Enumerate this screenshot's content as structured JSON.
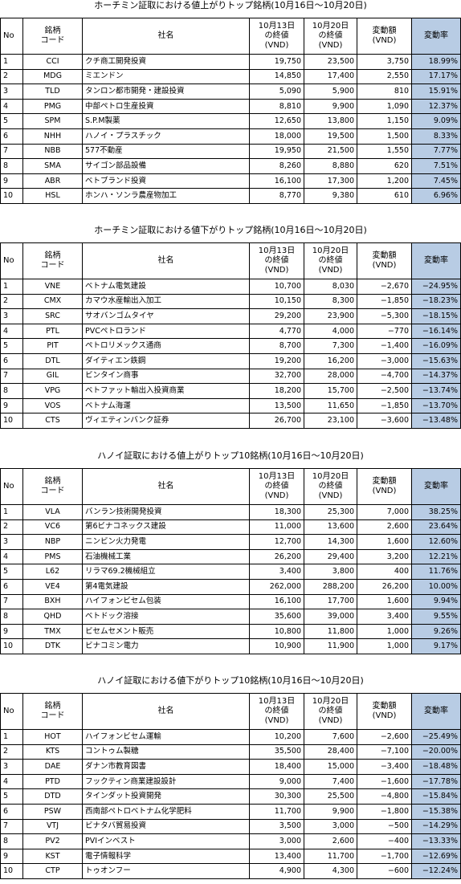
{
  "sections": [
    {
      "title": "ホーチミン証取における値上がりトップ銘柄(10月16日～10月20日)",
      "header": [
        [
          "No"
        ],
        [
          "銘柄",
          "コード"
        ],
        [
          "社名"
        ],
        [
          "10月13日",
          "の終値",
          "(VND)"
        ],
        [
          "10月20日",
          "の終値",
          "(VND)"
        ],
        [
          "変動額",
          "(VND)"
        ],
        [
          "変動率"
        ]
      ],
      "rows": [
        [
          "1",
          "CCI",
          "クチ商工開発投資",
          "19,750",
          "23,500",
          "3,750",
          "18.99%"
        ],
        [
          "2",
          "MDG",
          "ミエンドン",
          "14,850",
          "17,400",
          "2,550",
          "17.17%"
        ],
        [
          "3",
          "TLD",
          "タンロン都市開発・建設投資",
          "5,090",
          "5,900",
          "810",
          "15.91%"
        ],
        [
          "4",
          "PMG",
          "中部ペトロ生産投資",
          "8,810",
          "9,900",
          "1,090",
          "12.37%"
        ],
        [
          "5",
          "SPM",
          "S.P.M製薬",
          "12,650",
          "13,800",
          "1,150",
          "9.09%"
        ],
        [
          "6",
          "NHH",
          "ハノイ・プラスチック",
          "18,000",
          "19,500",
          "1,500",
          "8.33%"
        ],
        [
          "7",
          "NBB",
          "577不動産",
          "19,950",
          "21,500",
          "1,550",
          "7.77%"
        ],
        [
          "8",
          "SMA",
          "サイゴン部品設備",
          "8,260",
          "8,880",
          "620",
          "7.51%"
        ],
        [
          "9",
          "ABR",
          "ベトブランド投資",
          "16,100",
          "17,300",
          "1,200",
          "7.45%"
        ],
        [
          "10",
          "HSL",
          "ホンハ・ソンラ農産物加工",
          "8,770",
          "9,380",
          "610",
          "6.96%"
        ]
      ]
    },
    {
      "title": "ホーチミン証取における値下がりトップ銘柄(10月16日～10月20日)",
      "header": [
        [
          "No"
        ],
        [
          "銘柄",
          "コード"
        ],
        [
          "社名"
        ],
        [
          "10月13日",
          "の終値",
          "(VND)"
        ],
        [
          "10月20日",
          "の終値",
          "(VND)"
        ],
        [
          "変動額",
          "(VND)"
        ],
        [
          "変動率"
        ]
      ],
      "rows": [
        [
          "1",
          "VNE",
          "ベトナム電気建設",
          "10,700",
          "8,030",
          "−2,670",
          "−24.95%"
        ],
        [
          "2",
          "CMX",
          "カマウ水産輸出入加工",
          "10,150",
          "8,300",
          "−1,850",
          "−18.23%"
        ],
        [
          "3",
          "SRC",
          "サオバンゴムタイヤ",
          "29,200",
          "23,900",
          "−5,300",
          "−18.15%"
        ],
        [
          "4",
          "PTL",
          "PVCペトロランド",
          "4,770",
          "4,000",
          "−770",
          "−16.14%"
        ],
        [
          "5",
          "PIT",
          "ペトロリメックス通商",
          "8,700",
          "7,300",
          "−1,400",
          "−16.09%"
        ],
        [
          "6",
          "DTL",
          "ダイティエン鉄鋼",
          "19,200",
          "16,200",
          "−3,000",
          "−15.63%"
        ],
        [
          "7",
          "GIL",
          "ビンタイン商事",
          "32,700",
          "28,000",
          "−4,700",
          "−14.37%"
        ],
        [
          "8",
          "VPG",
          "ベトファット輸出入投資商業",
          "18,200",
          "15,700",
          "−2,500",
          "−13.74%"
        ],
        [
          "9",
          "VOS",
          "ベトナム海運",
          "13,500",
          "11,650",
          "−1,850",
          "−13.70%"
        ],
        [
          "10",
          "CTS",
          "ヴィエティンバンク証券",
          "26,700",
          "23,100",
          "−3,600",
          "−13.48%"
        ]
      ]
    },
    {
      "title": "ハノイ証取における値上がりトップ10銘柄(10月16日～10月20日)",
      "header": [
        [
          "No"
        ],
        [
          "銘柄",
          "コード"
        ],
        [
          "社名"
        ],
        [
          "10月13日",
          "の終値",
          "(VND)"
        ],
        [
          "10月20日",
          "の終値",
          "(VND)"
        ],
        [
          "変動額",
          "(VND)"
        ],
        [
          "変動率"
        ]
      ],
      "rows": [
        [
          "1",
          "VLA",
          "バンラン技術開発投資",
          "18,300",
          "25,300",
          "7,000",
          "38.25%"
        ],
        [
          "2",
          "VC6",
          "第6ビナコネックス建設",
          "11,000",
          "13,600",
          "2,600",
          "23.64%"
        ],
        [
          "3",
          "NBP",
          "ニンビン火力発電",
          "12,700",
          "14,300",
          "1,600",
          "12.60%"
        ],
        [
          "4",
          "PMS",
          "石油機械工業",
          "26,200",
          "29,400",
          "3,200",
          "12.21%"
        ],
        [
          "5",
          "L62",
          "リラマ69.2機械組立",
          "3,400",
          "3,800",
          "400",
          "11.76%"
        ],
        [
          "6",
          "VE4",
          "第4電気建設",
          "262,000",
          "288,200",
          "26,200",
          "10.00%"
        ],
        [
          "7",
          "BXH",
          "ハイフォンビセム包装",
          "16,100",
          "17,700",
          "1,600",
          "9.94%"
        ],
        [
          "8",
          "QHD",
          "ベトドック溶接",
          "35,600",
          "39,000",
          "3,400",
          "9.55%"
        ],
        [
          "9",
          "TMX",
          "ビセムセメント販売",
          "10,800",
          "11,800",
          "1,000",
          "9.26%"
        ],
        [
          "10",
          "DTK",
          "ビナコミン電力",
          "10,900",
          "11,900",
          "1,000",
          "9.17%"
        ]
      ]
    },
    {
      "title": "ハノイ証取における値下がりトップ10銘柄(10月16日～10月20日)",
      "header": [
        [
          "No"
        ],
        [
          "銘柄",
          "コード"
        ],
        [
          "社名"
        ],
        [
          "10月13日",
          "の終値",
          "(VND)"
        ],
        [
          "10月20日",
          "の終値",
          "(VND)"
        ],
        [
          "変動額",
          "(VND)"
        ],
        [
          "変動率"
        ]
      ],
      "rows": [
        [
          "1",
          "HOT",
          "ハイフォンビセム運輸",
          "10,200",
          "7,600",
          "−2,600",
          "−25.49%"
        ],
        [
          "2",
          "KTS",
          "コントゥム製糖",
          "35,500",
          "28,400",
          "−7,100",
          "−20.00%"
        ],
        [
          "3",
          "DAE",
          "ダナン市教育図書",
          "18,400",
          "15,000",
          "−3,400",
          "−18.48%"
        ],
        [
          "4",
          "PTD",
          "フックティン商業建設設計",
          "9,000",
          "7,400",
          "−1,600",
          "−17.78%"
        ],
        [
          "5",
          "DTD",
          "タインダット投資開発",
          "30,300",
          "25,500",
          "−4,800",
          "−15.84%"
        ],
        [
          "6",
          "PSW",
          "西南部ペトロベトナム化学肥料",
          "11,700",
          "9,900",
          "−1,800",
          "−15.38%"
        ],
        [
          "7",
          "VTJ",
          "ビナタバ貿易投資",
          "3,500",
          "3,000",
          "−500",
          "−14.29%"
        ],
        [
          "8",
          "PV2",
          "PVIインベスト",
          "3,000",
          "2,600",
          "−400",
          "−13.33%"
        ],
        [
          "9",
          "KST",
          "電子情報科学",
          "13,400",
          "11,700",
          "−1,700",
          "−12.69%"
        ],
        [
          "10",
          "CTP",
          "トゥオンフー",
          "4,900",
          "4,300",
          "−600",
          "−12.24%"
        ]
      ]
    }
  ]
}
